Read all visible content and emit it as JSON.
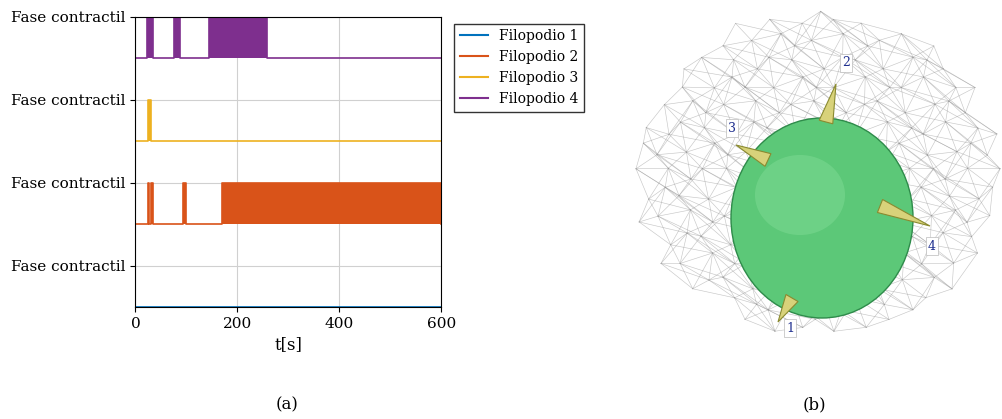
{
  "chart_data": {
    "type": "step",
    "panel_label": "(a)",
    "x_label": "t[s]",
    "xlim": [
      0,
      600
    ],
    "xticks": [
      0,
      200,
      400,
      600
    ],
    "ylim": [
      0,
      7
    ],
    "yticks": [
      {
        "value": 1,
        "label": "Fase contractil"
      },
      {
        "value": 3,
        "label": "Fase contractil"
      },
      {
        "value": 5,
        "label": "Fase contractil"
      },
      {
        "value": 7,
        "label": "Fase contractil"
      }
    ],
    "grid": true,
    "legend": "right",
    "series": [
      {
        "name": "Filopodio 1",
        "color": "#0072BD",
        "offset": 0,
        "intervals": []
      },
      {
        "name": "Filopodio 2",
        "color": "#D95319",
        "offset": 2,
        "intervals": [
          [
            24,
            27
          ],
          [
            31,
            35
          ],
          [
            94,
            100
          ],
          [
            169,
            600
          ]
        ]
      },
      {
        "name": "Filopodio 3",
        "color": "#EDB120",
        "offset": 4,
        "intervals": [
          [
            25,
            31
          ]
        ]
      },
      {
        "name": "Filopodio 4",
        "color": "#7E2F8E",
        "offset": 6,
        "intervals": [
          [
            23.5,
            35
          ],
          [
            76,
            88
          ],
          [
            145,
            259
          ]
        ]
      }
    ]
  },
  "diagram": {
    "panel_label": "(b)",
    "filopodia": [
      "1",
      "2",
      "3",
      "4"
    ]
  }
}
